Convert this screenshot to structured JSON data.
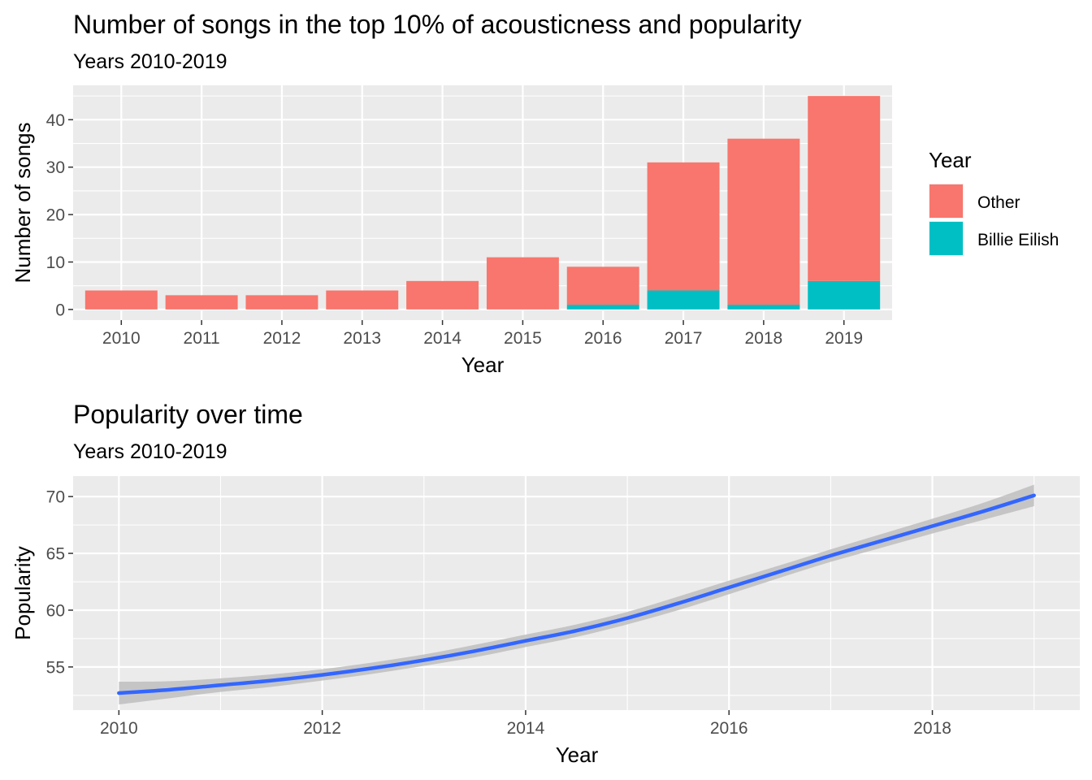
{
  "chart_data": [
    {
      "type": "bar",
      "stacked": true,
      "title": "Number of songs in the top 10% of acousticness and popularity",
      "subtitle": "Years 2010-2019",
      "xlabel": "Year",
      "ylabel": "Number of songs",
      "categories": [
        "2010",
        "2011",
        "2012",
        "2013",
        "2014",
        "2015",
        "2016",
        "2017",
        "2018",
        "2019"
      ],
      "series": [
        {
          "name": "Other",
          "color": "#F8766D",
          "values": [
            4,
            3,
            3,
            4,
            6,
            11,
            8,
            27,
            35,
            39
          ]
        },
        {
          "name": "Billie Eilish",
          "color": "#00BFC4",
          "values": [
            0,
            0,
            0,
            0,
            0,
            0,
            1,
            4,
            1,
            6
          ]
        }
      ],
      "ylim": [
        -2.25,
        47.25
      ],
      "yticks": [
        0,
        10,
        20,
        30,
        40
      ],
      "grid": true,
      "panel_background": "#EBEBEB",
      "legend": {
        "title": "Year",
        "position": "right"
      }
    },
    {
      "type": "line",
      "smoothed": true,
      "confidence_band": true,
      "title": "Popularity over time",
      "subtitle": "Years 2010-2019",
      "xlabel": "Year",
      "ylabel": "Popularity",
      "x": [
        2010,
        2010.5,
        2011,
        2011.5,
        2012,
        2012.5,
        2013,
        2013.5,
        2014,
        2014.5,
        2015,
        2015.5,
        2016,
        2016.5,
        2017,
        2017.5,
        2018,
        2018.5,
        2019
      ],
      "y": [
        52.7,
        53.0,
        53.4,
        53.8,
        54.3,
        54.9,
        55.6,
        56.4,
        57.3,
        58.2,
        59.3,
        60.6,
        62.0,
        63.4,
        64.8,
        66.1,
        67.4,
        68.7,
        70.1
      ],
      "ci_width": [
        1.0,
        0.75,
        0.6,
        0.55,
        0.5,
        0.5,
        0.5,
        0.55,
        0.55,
        0.55,
        0.55,
        0.6,
        0.6,
        0.55,
        0.55,
        0.6,
        0.65,
        0.75,
        0.95
      ],
      "xlim": [
        2009.55,
        2019.45
      ],
      "ylim": [
        51.2,
        71.8
      ],
      "xticks": [
        2010,
        2012,
        2014,
        2016,
        2018
      ],
      "yticks": [
        55,
        60,
        65,
        70
      ],
      "line_color": "#3366FF",
      "band_color": "#BEBEBE",
      "grid": true,
      "panel_background": "#EBEBEB"
    }
  ]
}
